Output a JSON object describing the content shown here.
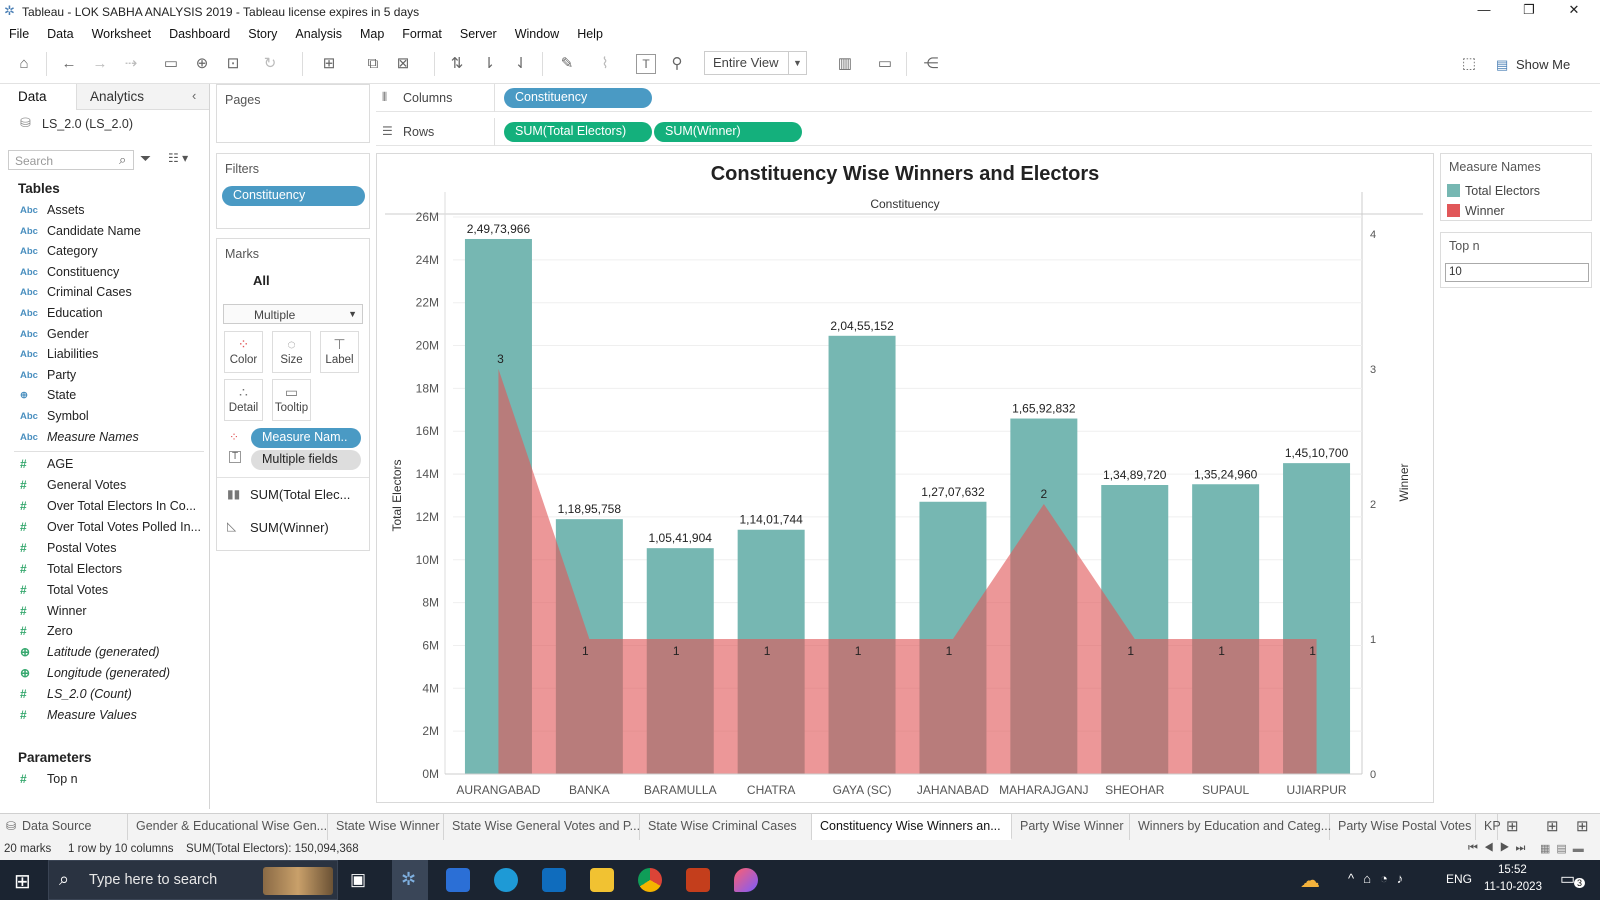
{
  "window": {
    "title": "Tableau - LOK SABHA ANALYSIS 2019 - Tableau license expires in 5 days"
  },
  "menu": [
    "File",
    "Data",
    "Worksheet",
    "Dashboard",
    "Story",
    "Analysis",
    "Map",
    "Format",
    "Server",
    "Window",
    "Help"
  ],
  "toolbar": {
    "fit": "Entire View",
    "show_me": "Show Me"
  },
  "data_pane": {
    "tab_data": "Data",
    "tab_analytics": "Analytics",
    "datasource": "LS_2.0 (LS_2.0)",
    "search_placeholder": "Search",
    "tables_heading": "Tables",
    "dimensions": [
      "Assets",
      "Candidate Name",
      "Category",
      "Constituency",
      "Criminal Cases",
      "Education",
      "Gender",
      "Liabilities",
      "Party",
      "State",
      "Symbol",
      "Measure Names"
    ],
    "measures": [
      "AGE",
      "General Votes",
      "Over Total Electors  In Co...",
      "Over Total Votes Polled  In...",
      "Postal Votes",
      "Total Electors",
      "Total Votes",
      "Winner",
      "Zero",
      "Latitude (generated)",
      "Longitude (generated)",
      "LS_2.0 (Count)",
      "Measure Values"
    ],
    "parameters_heading": "Parameters",
    "parameters": [
      "Top n"
    ]
  },
  "pages_card": {
    "title": "Pages"
  },
  "filters_card": {
    "title": "Filters",
    "pill": "Constituency"
  },
  "marks_card": {
    "title": "Marks",
    "all": "All",
    "type": "Multiple",
    "buttons": {
      "color": "Color",
      "size": "Size",
      "label": "Label",
      "detail": "Detail",
      "tooltip": "Tooltip"
    },
    "color_pill": "Measure Nam..",
    "label_pill": "Multiple fields",
    "sum1": "SUM(Total Elec...",
    "sum2": "SUM(Winner)"
  },
  "shelves": {
    "columns_label": "Columns",
    "columns_pill": "Constituency",
    "rows_label": "Rows",
    "rows_pill1": "SUM(Total Electors)",
    "rows_pill2": "SUM(Winner)"
  },
  "legend": {
    "title": "Measure Names",
    "items": [
      {
        "label": "Total Electors",
        "color": "#76b7b2"
      },
      {
        "label": "Winner",
        "color": "#e15759"
      }
    ]
  },
  "topn": {
    "title": "Top n",
    "value": "10"
  },
  "chart_data": {
    "type": "bar",
    "title": "Constituency Wise Winners and Electors",
    "header": "Constituency",
    "categories": [
      "AURANGABAD",
      "BANKA",
      "BARAMULLA",
      "CHATRA",
      "GAYA (SC)",
      "JAHANABAD",
      "MAHARAJGANJ",
      "SHEOHAR",
      "SUPAUL",
      "UJIARPUR"
    ],
    "series": [
      {
        "name": "Total Electors",
        "type": "bar",
        "color": "#76b7b2",
        "values": [
          24973966,
          11895758,
          10541904,
          11401744,
          20455152,
          12707632,
          16592832,
          13489720,
          13524960,
          14510700
        ],
        "labels": [
          "2,49,73,966",
          "1,18,95,758",
          "1,05,41,904",
          "1,14,01,744",
          "2,04,55,152",
          "1,27,07,632",
          "1,65,92,832",
          "1,34,89,720",
          "1,35,24,960",
          "1,45,10,700"
        ]
      },
      {
        "name": "Winner",
        "type": "area",
        "color": "#e15759",
        "values": [
          3,
          1,
          1,
          1,
          1,
          1,
          2,
          1,
          1,
          1
        ],
        "labels": [
          "3",
          "1",
          "1",
          "1",
          "1",
          "1",
          "2",
          "1",
          "1",
          "1"
        ]
      }
    ],
    "ylabel": "Total Electors",
    "y2label": "Winner",
    "ylim": [
      0,
      26000000
    ],
    "yticks": [
      "0M",
      "2M",
      "4M",
      "6M",
      "8M",
      "10M",
      "12M",
      "14M",
      "16M",
      "18M",
      "20M",
      "22M",
      "24M",
      "26M"
    ],
    "y2lim": [
      0,
      4
    ],
    "y2ticks": [
      "0",
      "1",
      "2",
      "3",
      "4"
    ]
  },
  "sheet_tabs": [
    "Data Source",
    "Gender & Educational Wise Gen...",
    "State Wise Winner",
    "State Wise General Votes and P...",
    "State Wise Criminal Cases",
    "Constituency Wise Winners an...",
    "Party Wise Winner",
    "Winners by Education and Categ...",
    "Party Wise Postal Votes",
    "KP"
  ],
  "active_tab": 5,
  "status": {
    "marks": "20 marks",
    "rows": "1 row by 10 columns",
    "sum": "SUM(Total Electors): 150,094,368"
  },
  "taskbar": {
    "search_placeholder": "Type here to search",
    "lang": "ENG",
    "time": "15:52",
    "date": "11-10-2023",
    "notif_count": "3"
  }
}
